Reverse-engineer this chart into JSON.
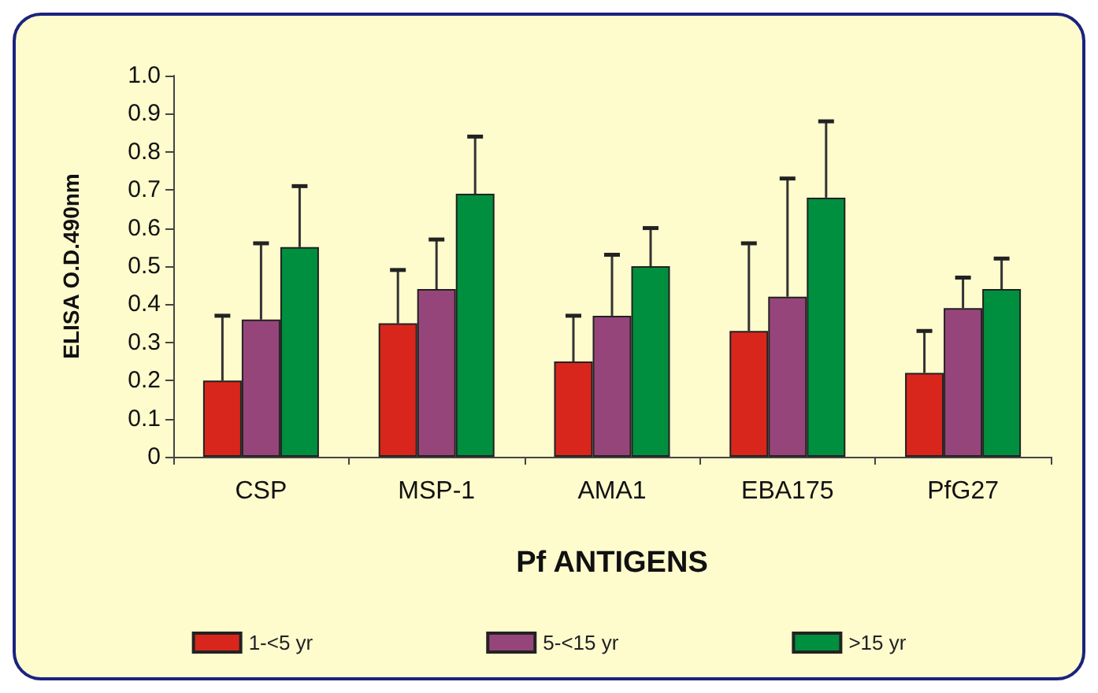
{
  "chart_data": {
    "type": "bar",
    "xlabel": "Pf ANTIGENS",
    "ylabel": "ELISA O.D.490nm",
    "categories": [
      "CSP",
      "MSP-1",
      "AMA1",
      "EBA175",
      "PfG27"
    ],
    "series": [
      {
        "name": "1-<5 yr",
        "color": "#d9261c",
        "values": [
          0.2,
          0.35,
          0.25,
          0.33,
          0.22
        ],
        "errors": [
          [
            0.2,
            0.37
          ],
          [
            0.35,
            0.49
          ],
          [
            0.25,
            0.37
          ],
          [
            0.33,
            0.56
          ],
          [
            0.22,
            0.33
          ]
        ]
      },
      {
        "name": "5-<15 yr",
        "color": "#96457a",
        "values": [
          0.36,
          0.44,
          0.37,
          0.42,
          0.39
        ],
        "errors": [
          [
            0.36,
            0.56
          ],
          [
            0.44,
            0.57
          ],
          [
            0.37,
            0.53
          ],
          [
            0.42,
            0.73
          ],
          [
            0.39,
            0.47
          ]
        ]
      },
      {
        "name": ">15 yr",
        "color": "#008f3e",
        "values": [
          0.55,
          0.69,
          0.5,
          0.68,
          0.44
        ],
        "errors": [
          [
            0.55,
            0.71
          ],
          [
            0.69,
            0.84
          ],
          [
            0.5,
            0.6
          ],
          [
            0.68,
            0.88
          ],
          [
            0.44,
            0.52
          ]
        ]
      }
    ],
    "ylim": [
      0,
      1
    ],
    "yticks": [
      0,
      0.1,
      0.2,
      0.3,
      0.4,
      0.5,
      0.6,
      0.7,
      0.8,
      0.9,
      {
        "value": 1,
        "label": "1.0"
      }
    ],
    "grid": false,
    "legend": "bottom"
  }
}
